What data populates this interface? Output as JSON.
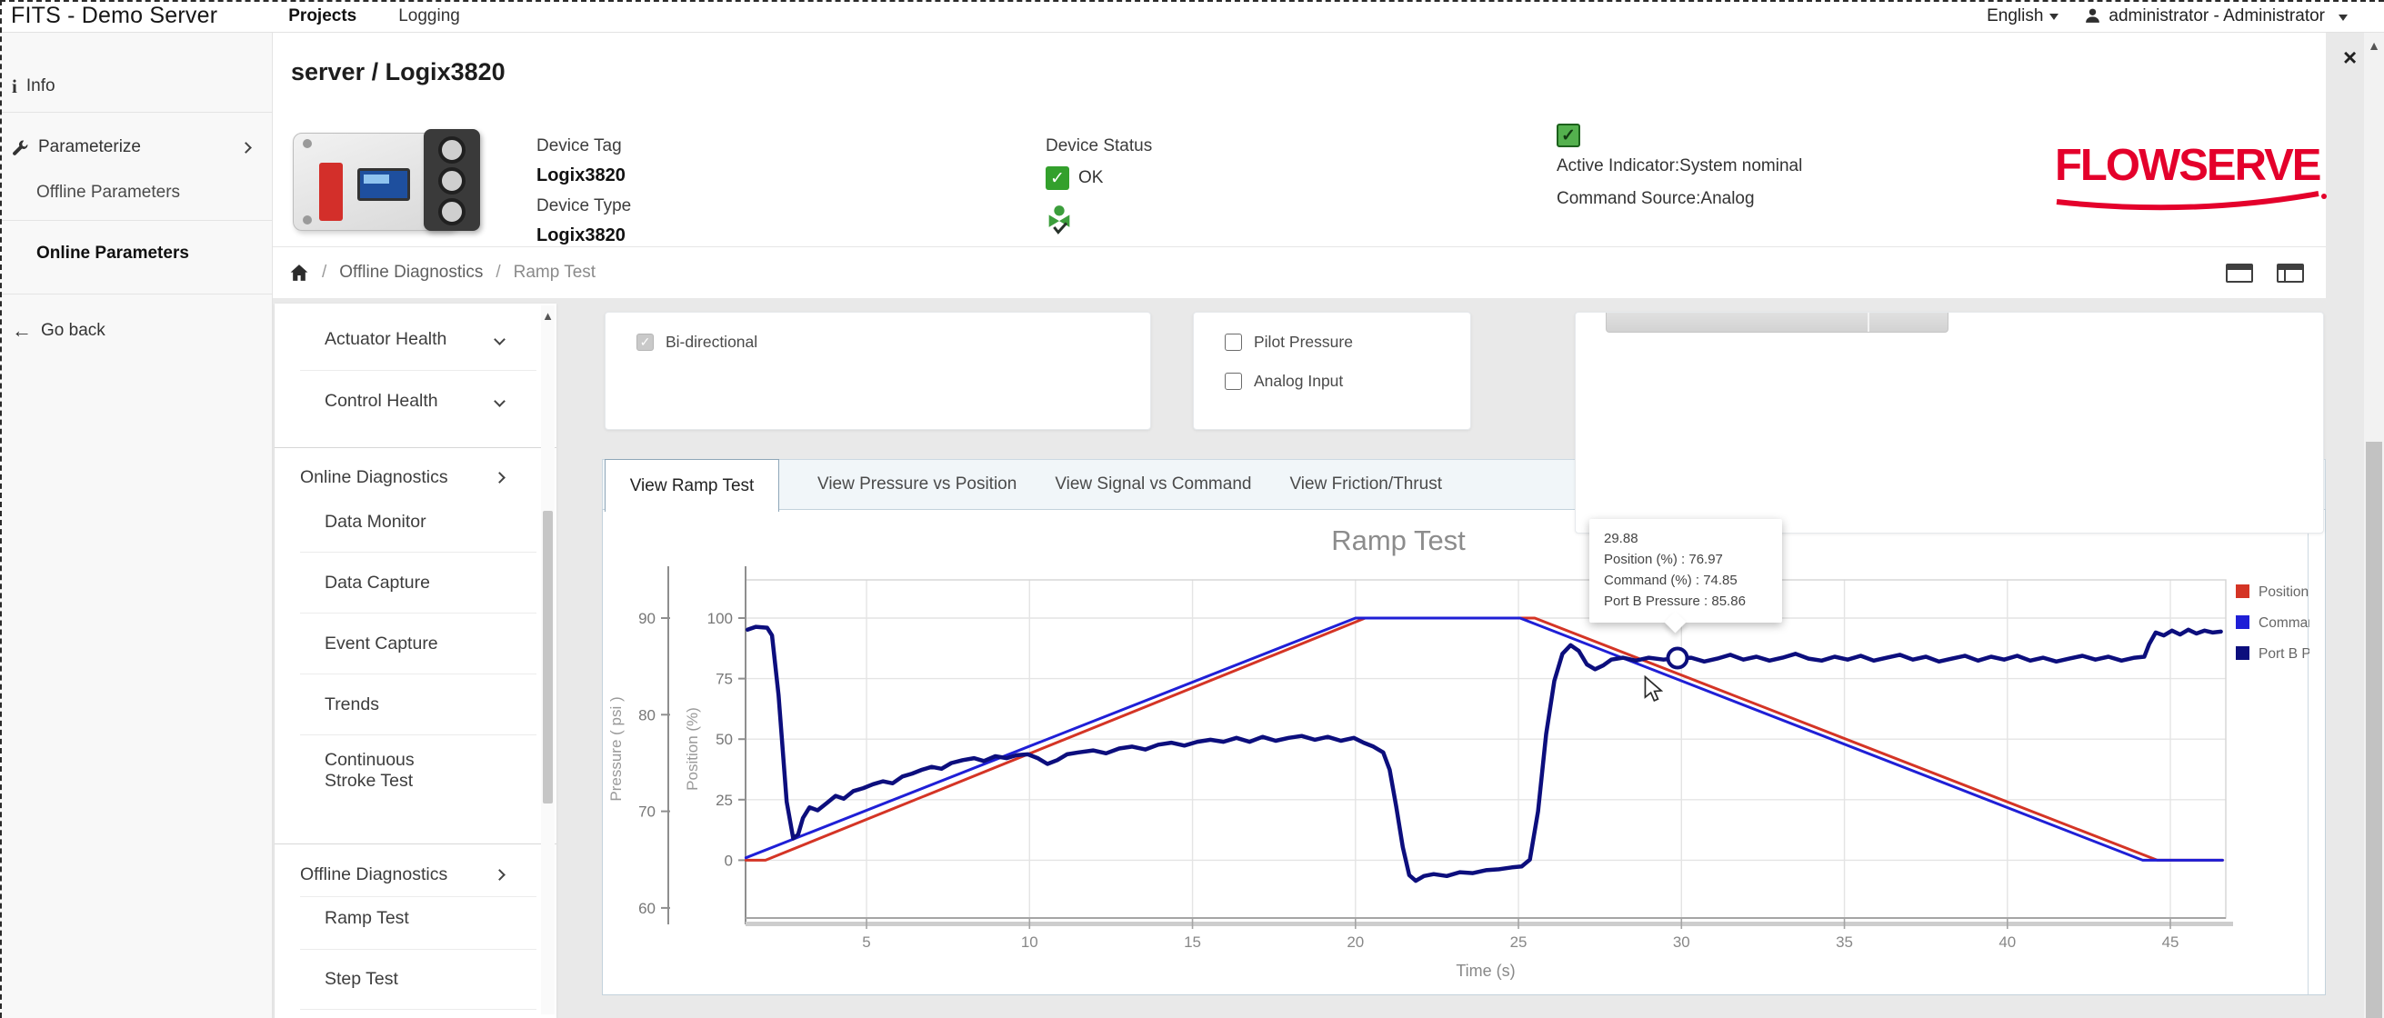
{
  "topbar": {
    "brand": "FITS - Demo Server",
    "nav": [
      {
        "label": "Projects"
      },
      {
        "label": "Logging"
      }
    ],
    "language": "English",
    "user": "administrator - Administrator"
  },
  "header": {
    "title": "server / Logix3820",
    "close": "×",
    "device": {
      "tag_label": "Device Tag",
      "tag": "Logix3820",
      "type_label": "Device Type",
      "type": "Logix3820",
      "status_label": "Device Status",
      "status": "OK"
    },
    "indicators": {
      "active": "Active Indicator:System nominal",
      "command": "Command Source:Analog"
    },
    "logo": "FLOWSERVE",
    "brand_red": "#e4002b"
  },
  "breadcrumb": {
    "sep": "/",
    "items": [
      "Offline Diagnostics",
      "Ramp Test"
    ]
  },
  "sidebar": {
    "items": [
      {
        "label": "Info",
        "icon": "info-icon"
      },
      {
        "label": "Parameterize",
        "icon": "wrench-icon",
        "chevron": "right"
      },
      {
        "label": "Offline Parameters"
      },
      {
        "label": "Online Parameters",
        "bold": true
      },
      {
        "label": "Go back",
        "icon": "arrow-left-icon"
      }
    ]
  },
  "menu": {
    "items": [
      {
        "label": "Actuator Health",
        "type": "sub",
        "chevron": "down"
      },
      {
        "label": "Control Health",
        "type": "sub",
        "chevron": "down"
      },
      {
        "label": "Online Diagnostics",
        "type": "section",
        "chevron": "right"
      },
      {
        "label": "Data Monitor",
        "type": "sub"
      },
      {
        "label": "Data Capture",
        "type": "sub"
      },
      {
        "label": "Event Capture",
        "type": "sub"
      },
      {
        "label": "Trends",
        "type": "sub"
      },
      {
        "label": "Continuous Stroke Test",
        "type": "sub",
        "wrap": true
      },
      {
        "label": "Offline Diagnostics",
        "type": "section",
        "chevron": "right"
      },
      {
        "label": "Ramp Test",
        "type": "sub",
        "active": true
      },
      {
        "label": "Step Test",
        "type": "sub"
      }
    ]
  },
  "options": {
    "bidirectional": "Bi-directional",
    "pilot_pressure": "Pilot Pressure",
    "analog_input": "Analog Input"
  },
  "tabs": [
    "View Ramp Test",
    "View Pressure vs Position",
    "View Signal vs Command",
    "View Friction/Thrust"
  ],
  "active_tab": 0,
  "tooltip": {
    "header": "29.88",
    "lines": [
      "Position (%) : 76.97",
      "Command (%) : 74.85",
      "Port B Pressure : 85.86"
    ]
  },
  "chart_data": {
    "type": "line",
    "title": "Ramp Test",
    "xlabel": "Time (s)",
    "x_ticks": [
      5,
      10,
      15,
      20,
      25,
      30,
      35,
      40,
      45
    ],
    "x_range": [
      1.3,
      46.6
    ],
    "grid": true,
    "legend_position": "right",
    "axes": {
      "position": {
        "label": "Position (%)",
        "ticks": [
          100,
          75,
          50,
          25,
          0
        ]
      },
      "pressure": {
        "label": "Pressure ( psi )",
        "ticks": [
          90,
          80,
          70,
          60
        ]
      }
    },
    "legend": [
      {
        "name": "Position (%)",
        "color": "#d43425"
      },
      {
        "name": "Command (%)",
        "color": "#1f1fd6"
      },
      {
        "name": "Port B Pressure",
        "color": "#0c0e7d"
      }
    ],
    "marker": {
      "t": 29.88,
      "value": 85.86,
      "axis": "pressure"
    },
    "series": [
      {
        "name": "Position (%)",
        "axis": "position",
        "color": "#d43425",
        "width": 3,
        "points": [
          [
            1.3,
            0
          ],
          [
            1.9,
            0
          ],
          [
            20.3,
            100
          ],
          [
            25.5,
            100
          ],
          [
            44.6,
            0
          ],
          [
            46.6,
            0
          ]
        ]
      },
      {
        "name": "Command (%)",
        "axis": "position",
        "color": "#1f1fd6",
        "width": 3,
        "points": [
          [
            1.3,
            1
          ],
          [
            20.0,
            100
          ],
          [
            25.05,
            100
          ],
          [
            44.15,
            0
          ],
          [
            46.6,
            0
          ]
        ]
      },
      {
        "name": "Port B Pressure",
        "axis": "pressure",
        "color": "#0c0e7d",
        "width": 4.5,
        "points": [
          [
            1.35,
            88.8
          ],
          [
            1.6,
            89.1
          ],
          [
            1.95,
            89.0
          ],
          [
            2.1,
            88.2
          ],
          [
            2.3,
            82
          ],
          [
            2.55,
            71
          ],
          [
            2.75,
            67.2
          ],
          [
            2.9,
            67.6
          ],
          [
            3.05,
            69.3
          ],
          [
            3.25,
            70.4
          ],
          [
            3.5,
            70.1
          ],
          [
            3.8,
            70.9
          ],
          [
            4.05,
            71.6
          ],
          [
            4.3,
            71.3
          ],
          [
            4.6,
            72.1
          ],
          [
            4.9,
            72.4
          ],
          [
            5.2,
            72.8
          ],
          [
            5.5,
            73.1
          ],
          [
            5.8,
            72.9
          ],
          [
            6.1,
            73.6
          ],
          [
            6.4,
            73.9
          ],
          [
            6.7,
            74.3
          ],
          [
            7.0,
            74.6
          ],
          [
            7.3,
            74.4
          ],
          [
            7.6,
            75.0
          ],
          [
            7.95,
            75.3
          ],
          [
            8.3,
            75.5
          ],
          [
            8.6,
            75.2
          ],
          [
            8.95,
            75.7
          ],
          [
            9.3,
            75.5
          ],
          [
            9.6,
            75.8
          ],
          [
            9.95,
            75.9
          ],
          [
            10.25,
            75.5
          ],
          [
            10.55,
            74.9
          ],
          [
            10.85,
            75.3
          ],
          [
            11.15,
            75.9
          ],
          [
            11.5,
            76.1
          ],
          [
            11.95,
            76.3
          ],
          [
            12.35,
            76.0
          ],
          [
            12.75,
            76.5
          ],
          [
            13.15,
            76.7
          ],
          [
            13.55,
            76.4
          ],
          [
            13.95,
            76.9
          ],
          [
            14.35,
            77.1
          ],
          [
            14.75,
            76.8
          ],
          [
            15.15,
            77.2
          ],
          [
            15.55,
            77.4
          ],
          [
            15.95,
            77.2
          ],
          [
            16.35,
            77.6
          ],
          [
            16.75,
            77.2
          ],
          [
            17.15,
            77.7
          ],
          [
            17.55,
            77.3
          ],
          [
            17.95,
            77.6
          ],
          [
            18.35,
            77.8
          ],
          [
            18.75,
            77.4
          ],
          [
            19.15,
            77.7
          ],
          [
            19.55,
            77.3
          ],
          [
            19.95,
            77.6
          ],
          [
            20.25,
            77.1
          ],
          [
            20.55,
            76.7
          ],
          [
            20.85,
            76.1
          ],
          [
            21.05,
            74.3
          ],
          [
            21.25,
            70.5
          ],
          [
            21.45,
            66.3
          ],
          [
            21.65,
            63.4
          ],
          [
            21.85,
            62.8
          ],
          [
            22.1,
            63.3
          ],
          [
            22.4,
            63.5
          ],
          [
            22.8,
            63.3
          ],
          [
            23.2,
            63.7
          ],
          [
            23.6,
            63.6
          ],
          [
            24.0,
            63.9
          ],
          [
            24.4,
            64.0
          ],
          [
            24.8,
            64.2
          ],
          [
            25.1,
            64.3
          ],
          [
            25.35,
            65.0
          ],
          [
            25.6,
            70.0
          ],
          [
            25.85,
            78.0
          ],
          [
            26.1,
            83.5
          ],
          [
            26.35,
            86.3
          ],
          [
            26.6,
            87.2
          ],
          [
            26.85,
            86.6
          ],
          [
            27.1,
            85.2
          ],
          [
            27.35,
            84.7
          ],
          [
            27.6,
            85.1
          ],
          [
            27.85,
            85.7
          ],
          [
            28.2,
            85.9
          ],
          [
            28.6,
            85.6
          ],
          [
            29.0,
            85.9
          ],
          [
            29.45,
            85.7
          ],
          [
            29.88,
            85.86
          ],
          [
            30.3,
            85.9
          ],
          [
            30.7,
            85.5
          ],
          [
            31.1,
            85.8
          ],
          [
            31.5,
            86.2
          ],
          [
            31.9,
            85.7
          ],
          [
            32.3,
            86.0
          ],
          [
            32.7,
            85.6
          ],
          [
            33.1,
            85.9
          ],
          [
            33.5,
            86.3
          ],
          [
            33.9,
            85.8
          ],
          [
            34.3,
            85.6
          ],
          [
            34.7,
            86.0
          ],
          [
            35.1,
            85.7
          ],
          [
            35.5,
            86.1
          ],
          [
            35.9,
            85.6
          ],
          [
            36.3,
            85.9
          ],
          [
            36.7,
            86.2
          ],
          [
            37.1,
            85.7
          ],
          [
            37.5,
            86.0
          ],
          [
            37.9,
            85.5
          ],
          [
            38.3,
            85.8
          ],
          [
            38.7,
            86.1
          ],
          [
            39.1,
            85.6
          ],
          [
            39.5,
            86.0
          ],
          [
            39.9,
            85.7
          ],
          [
            40.3,
            86.1
          ],
          [
            40.7,
            85.6
          ],
          [
            41.1,
            85.9
          ],
          [
            41.5,
            85.5
          ],
          [
            41.9,
            85.8
          ],
          [
            42.3,
            86.1
          ],
          [
            42.7,
            85.7
          ],
          [
            43.1,
            86.0
          ],
          [
            43.5,
            85.6
          ],
          [
            43.9,
            85.9
          ],
          [
            44.2,
            86.0
          ],
          [
            44.35,
            87.3
          ],
          [
            44.55,
            88.5
          ],
          [
            44.8,
            88.2
          ],
          [
            45.05,
            88.7
          ],
          [
            45.3,
            88.3
          ],
          [
            45.55,
            88.8
          ],
          [
            45.8,
            88.4
          ],
          [
            46.05,
            88.7
          ],
          [
            46.3,
            88.5
          ],
          [
            46.55,
            88.6
          ]
        ]
      }
    ]
  }
}
